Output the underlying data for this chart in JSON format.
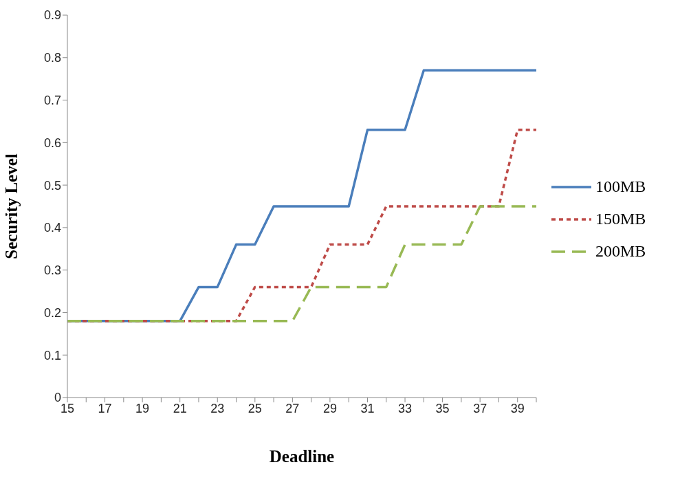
{
  "chart_data": {
    "type": "line",
    "xlabel": "Deadline",
    "ylabel": "Security Level",
    "categories": [
      "15",
      null,
      "17",
      null,
      "19",
      null,
      "21",
      null,
      "23",
      null,
      "25",
      null,
      "27",
      null,
      "29",
      null,
      "31",
      null,
      "33",
      null,
      "35",
      null,
      "37",
      null,
      "39",
      null
    ],
    "series": [
      {
        "name": "100MB",
        "color": "#4a7ebb",
        "line_style": "solid",
        "values": [
          0.18,
          0.18,
          0.18,
          0.18,
          0.18,
          0.18,
          0.18,
          0.26,
          0.26,
          0.36,
          0.36,
          0.45,
          0.45,
          0.45,
          0.45,
          0.45,
          0.63,
          0.63,
          0.63,
          0.77,
          0.77,
          0.77,
          0.77,
          0.77,
          0.77,
          0.77
        ]
      },
      {
        "name": "150MB",
        "color": "#be4b48",
        "line_style": "dotted",
        "values": [
          0.18,
          0.18,
          0.18,
          0.18,
          0.18,
          0.18,
          0.18,
          0.18,
          0.18,
          0.18,
          0.26,
          0.26,
          0.26,
          0.26,
          0.36,
          0.36,
          0.36,
          0.45,
          0.45,
          0.45,
          0.45,
          0.45,
          0.45,
          0.45,
          0.63,
          0.63
        ]
      },
      {
        "name": "200MB",
        "color": "#98b954",
        "line_style": "dashed",
        "values": [
          0.18,
          0.18,
          0.18,
          0.18,
          0.18,
          0.18,
          0.18,
          0.18,
          0.18,
          0.18,
          0.18,
          0.18,
          0.18,
          0.26,
          0.26,
          0.26,
          0.26,
          0.26,
          0.36,
          0.36,
          0.36,
          0.36,
          0.45,
          0.45,
          0.45,
          0.45
        ]
      }
    ],
    "ylim": [
      0,
      0.9
    ],
    "yticks": [
      0,
      0.1,
      0.2,
      0.3,
      0.4,
      0.5,
      0.6,
      0.7,
      0.8,
      0.9
    ],
    "grid": false,
    "legend": "right",
    "marker": "none"
  }
}
